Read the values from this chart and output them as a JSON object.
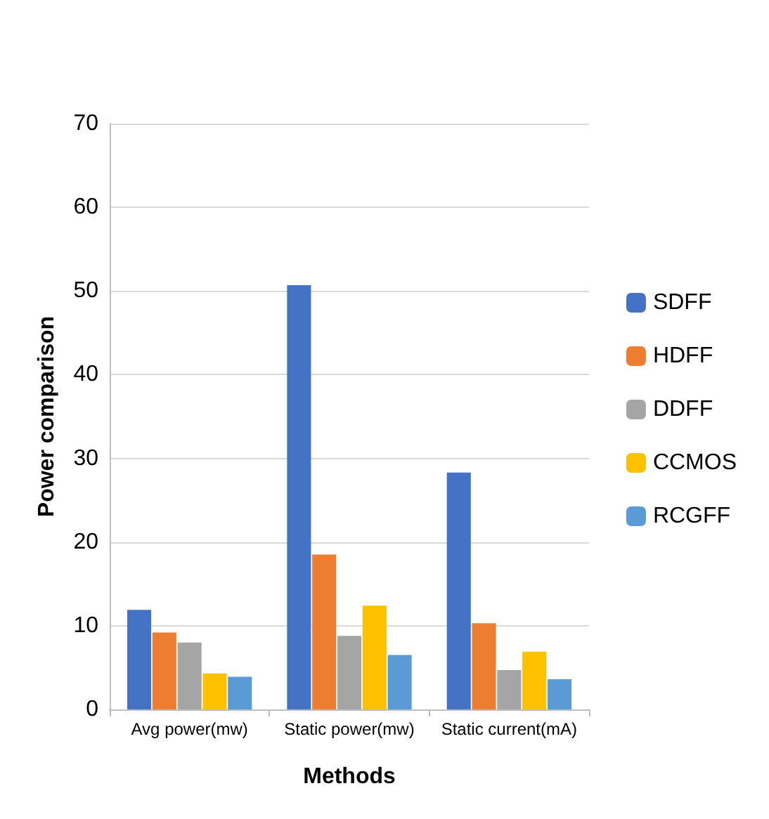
{
  "chart_data": {
    "type": "bar",
    "xlabel": "Methods",
    "ylabel": "Power comparison",
    "categories": [
      "Avg power(mw)",
      "Static power(mw)",
      "Static current(mA)"
    ],
    "series": [
      {
        "name": "SDFF",
        "color": "#4472c4",
        "values": [
          11.9,
          50.7,
          28.3
        ]
      },
      {
        "name": "HDFF",
        "color": "#ed7d31",
        "values": [
          9.2,
          18.5,
          10.3
        ]
      },
      {
        "name": "DDFF",
        "color": "#a5a5a5",
        "values": [
          8.0,
          8.8,
          4.7
        ]
      },
      {
        "name": "CCMOS",
        "color": "#ffc000",
        "values": [
          4.3,
          12.4,
          6.9
        ]
      },
      {
        "name": "RCGFF",
        "color": "#5b9bd5",
        "values": [
          3.9,
          6.5,
          3.6
        ]
      }
    ],
    "ylim": [
      0,
      70
    ],
    "yticks": [
      0,
      10,
      20,
      30,
      40,
      50,
      60,
      70
    ],
    "grid": "y",
    "legend": "right"
  }
}
